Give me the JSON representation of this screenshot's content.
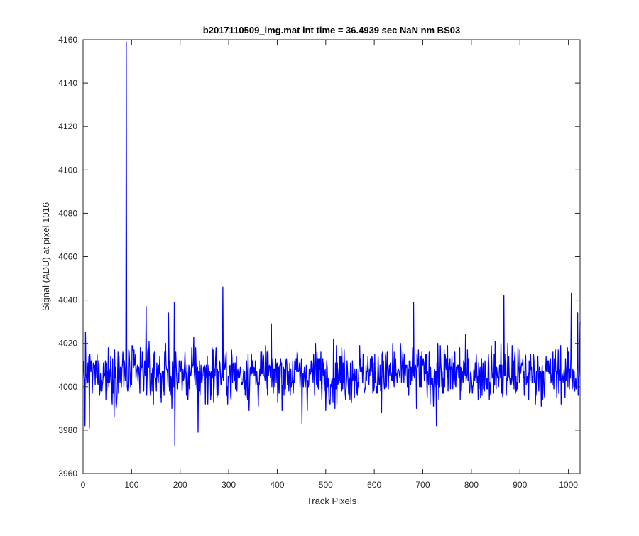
{
  "chart_data": {
    "type": "line",
    "title": "b2017110509_img.mat int time = 36.4939 sec  NaN nm BS03",
    "xlabel": "Track Pixels",
    "ylabel": "Signal (ADU) at pixel 1016",
    "xlim": [
      0,
      1024
    ],
    "ylim": [
      3960,
      4160
    ],
    "xticks": [
      0,
      100,
      200,
      300,
      400,
      500,
      600,
      700,
      800,
      900,
      1000
    ],
    "yticks": [
      3960,
      3980,
      4000,
      4020,
      4040,
      4060,
      4080,
      4100,
      4120,
      4140,
      4160
    ],
    "grid": false,
    "line_color": "#0000ff",
    "series": [
      {
        "noise_points": 1024,
        "baseline": 4006,
        "noise_std": 6.5,
        "noise_min": 3978,
        "noise_max": 4036,
        "features": [
          {
            "x": 3,
            "y": 3982
          },
          {
            "x": 12,
            "y": 3981
          },
          {
            "x": 88,
            "y": 4159
          },
          {
            "x": 90,
            "y": 4000
          },
          {
            "x": 129,
            "y": 4037
          },
          {
            "x": 175,
            "y": 4034
          },
          {
            "x": 187,
            "y": 4039
          },
          {
            "x": 188,
            "y": 3973
          },
          {
            "x": 236,
            "y": 3979
          },
          {
            "x": 287,
            "y": 4046
          },
          {
            "x": 450,
            "y": 3983
          },
          {
            "x": 680,
            "y": 4039
          },
          {
            "x": 727,
            "y": 3982
          },
          {
            "x": 866,
            "y": 4042
          },
          {
            "x": 1005,
            "y": 4043
          },
          {
            "x": 1018,
            "y": 4034
          },
          {
            "x": 1023,
            "y": 4030
          }
        ]
      }
    ]
  }
}
